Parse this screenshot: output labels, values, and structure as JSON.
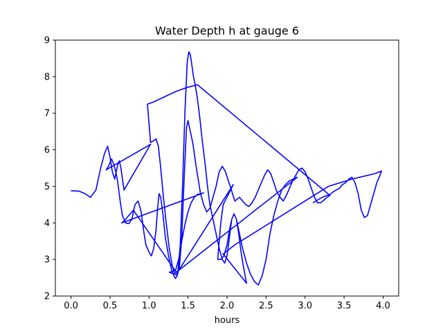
{
  "chart_data": {
    "type": "line",
    "title": "Water Depth h at gauge 6",
    "xlabel": "hours",
    "ylabel": "",
    "xlim": [
      -0.2,
      4.2
    ],
    "ylim": [
      2,
      9
    ],
    "xticks": [
      0.0,
      0.5,
      1.0,
      1.5,
      2.0,
      2.5,
      3.0,
      3.5,
      4.0
    ],
    "xtick_labels": [
      "0.0",
      "0.5",
      "1.0",
      "1.5",
      "2.0",
      "2.5",
      "3.0",
      "3.5",
      "4.0"
    ],
    "yticks": [
      2,
      3,
      4,
      5,
      6,
      7,
      8,
      9
    ],
    "ytick_labels": [
      "2",
      "3",
      "4",
      "5",
      "6",
      "7",
      "8",
      "9"
    ],
    "grid": false,
    "series": [
      {
        "color": "#0000ff",
        "x": [
          0.0,
          0.1,
          0.18,
          0.25,
          0.32,
          0.38,
          0.43,
          0.47,
          0.5,
          0.53,
          0.56,
          0.58,
          0.6,
          0.62,
          0.64,
          0.66,
          0.68,
          1.02,
          0.98,
          0.45,
          0.48,
          0.52,
          0.55,
          0.58,
          0.6,
          0.63,
          0.66,
          0.7,
          0.74,
          0.78,
          0.8,
          0.82,
          0.86,
          0.9,
          0.93,
          0.96,
          1.0,
          1.03,
          1.06,
          1.09,
          1.11,
          1.13,
          1.15,
          1.18,
          1.21,
          1.25,
          1.29,
          1.32,
          1.34,
          1.36,
          1.39,
          1.42,
          1.45,
          1.48,
          1.5,
          1.52,
          1.54,
          1.56,
          1.58,
          1.6,
          1.63,
          1.66,
          1.7,
          1.74,
          1.78,
          1.82,
          1.86,
          1.9,
          1.94,
          1.98,
          2.01,
          2.04,
          2.07,
          2.1,
          2.13,
          2.16,
          2.2,
          2.24,
          2.28,
          2.32,
          2.36,
          2.4,
          2.44,
          2.48,
          2.52,
          2.56,
          2.6,
          2.64,
          2.68,
          2.72,
          2.76,
          2.8,
          2.84,
          2.88,
          2.92,
          2.96,
          3.0,
          3.04,
          3.08,
          3.12,
          3.16,
          3.2,
          3.24,
          3.28,
          3.32,
          1.62,
          1.48,
          1.35,
          1.2,
          1.05,
          0.98,
          1.02,
          1.06,
          1.09,
          1.12,
          1.15,
          1.18,
          1.22,
          1.26,
          1.3,
          1.33,
          1.35,
          1.37,
          1.4,
          1.43,
          1.46,
          1.49,
          1.51,
          1.53,
          1.55,
          1.57,
          1.59,
          1.62,
          1.65,
          1.68,
          1.72,
          1.75,
          1.78,
          1.82,
          1.86,
          1.9,
          1.94,
          1.97,
          2.0,
          2.03,
          2.06,
          2.09,
          2.12,
          2.15,
          2.2,
          2.25,
          2.3,
          2.35,
          2.4,
          2.45,
          2.5,
          2.55,
          2.6,
          2.65,
          2.7,
          2.75,
          2.8,
          2.85,
          2.9,
          1.32,
          1.3,
          1.28,
          1.26,
          1.34,
          1.38,
          1.42,
          1.46,
          1.5,
          1.54,
          1.58,
          1.62,
          1.66,
          1.7,
          0.65,
          0.68,
          0.72,
          0.76,
          0.8,
          1.35,
          1.38,
          2.08,
          1.95,
          1.92,
          1.9,
          1.88,
          1.92,
          1.96,
          2.0,
          2.03,
          2.06,
          2.09,
          2.12,
          2.15,
          2.18,
          2.21,
          2.25,
          1.95,
          2.1,
          2.4,
          2.7,
          3.0,
          3.3,
          3.6,
          3.9,
          3.98,
          3.96,
          3.92,
          3.88,
          3.84,
          3.8,
          3.76,
          3.72,
          3.68,
          3.64,
          3.6,
          3.56,
          3.52,
          3.48,
          3.44,
          3.4,
          3.36,
          3.32,
          3.28,
          3.25,
          3.22,
          3.18,
          3.14,
          3.1
        ],
        "y": [
          4.88,
          4.87,
          4.8,
          4.7,
          4.9,
          5.5,
          5.9,
          6.1,
          5.8,
          5.4,
          5.2,
          5.4,
          5.6,
          5.7,
          5.5,
          5.2,
          4.9,
          6.15,
          6.1,
          5.45,
          5.55,
          5.75,
          5.6,
          5.35,
          5.1,
          4.6,
          4.2,
          4.0,
          3.98,
          4.1,
          4.3,
          4.5,
          4.6,
          4.3,
          3.8,
          3.4,
          3.2,
          3.1,
          3.3,
          3.8,
          4.4,
          4.8,
          4.7,
          4.2,
          3.6,
          3.1,
          2.7,
          2.55,
          2.48,
          2.55,
          2.8,
          3.6,
          5.2,
          6.6,
          6.8,
          6.6,
          6.4,
          6.2,
          5.9,
          5.6,
          5.2,
          4.8,
          4.5,
          4.3,
          4.4,
          4.7,
          5.0,
          5.4,
          5.55,
          5.4,
          5.2,
          5.0,
          4.8,
          4.6,
          4.65,
          4.7,
          4.6,
          4.5,
          4.45,
          4.55,
          4.7,
          4.9,
          5.1,
          5.3,
          5.45,
          5.35,
          5.1,
          4.85,
          4.7,
          4.6,
          4.75,
          4.95,
          5.15,
          5.3,
          5.45,
          5.5,
          5.4,
          5.2,
          4.95,
          4.7,
          4.55,
          4.55,
          4.62,
          4.7,
          4.75,
          7.78,
          7.7,
          7.6,
          7.45,
          7.3,
          7.25,
          6.2,
          6.25,
          6.3,
          6.1,
          5.5,
          4.8,
          4.0,
          3.3,
          2.8,
          2.6,
          2.58,
          2.65,
          3.4,
          5.0,
          7.0,
          8.4,
          8.68,
          8.6,
          8.3,
          8.0,
          7.8,
          7.4,
          6.9,
          6.3,
          5.6,
          5.0,
          4.5,
          4.1,
          3.7,
          3.3,
          3.0,
          2.9,
          3.1,
          3.6,
          4.1,
          4.25,
          4.1,
          3.8,
          3.3,
          2.9,
          2.6,
          2.4,
          2.3,
          2.55,
          3.0,
          3.7,
          4.2,
          4.6,
          4.9,
          5.05,
          5.15,
          5.2,
          5.25,
          2.6,
          2.62,
          2.63,
          2.65,
          2.7,
          3.0,
          3.5,
          3.95,
          4.3,
          4.55,
          4.7,
          4.78,
          4.8,
          4.82,
          4.0,
          4.05,
          4.15,
          4.25,
          4.35,
          2.65,
          2.7,
          5.05,
          4.5,
          4.0,
          3.5,
          3.0,
          3.0,
          3.1,
          3.4,
          3.8,
          4.1,
          4.25,
          4.1,
          3.7,
          3.2,
          2.8,
          2.35,
          3.15,
          3.4,
          3.8,
          4.2,
          4.6,
          5.0,
          5.2,
          5.35,
          5.42,
          5.3,
          5.1,
          4.8,
          4.5,
          4.2,
          4.15,
          4.35,
          4.8,
          5.1,
          5.25,
          5.2,
          5.1,
          5.05,
          4.95,
          4.9,
          4.85,
          4.78,
          4.75,
          4.73,
          4.7,
          4.65,
          4.6,
          4.55
        ]
      }
    ]
  }
}
